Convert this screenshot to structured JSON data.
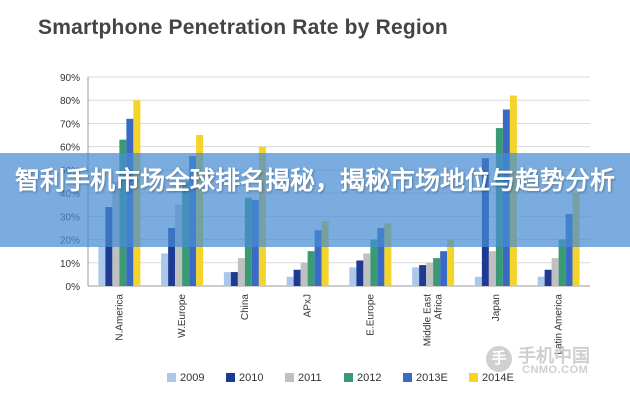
{
  "title": "Smartphone Penetration Rate by Region",
  "banner": {
    "text": "智利手机市场全球排名揭秘，揭秘市场地位与趋势分析"
  },
  "watermark": {
    "cn": "手机中国",
    "en": "CNMO.COM"
  },
  "colors": {
    "2009": "#a9c8ec",
    "2010": "#1f3a93",
    "2011": "#c0c0c0",
    "2012": "#3a9a73",
    "2013E": "#3b69c6",
    "2014E": "#f4d32a"
  },
  "chart_data": {
    "type": "bar",
    "title": "Smartphone Penetration Rate by Region",
    "categories": [
      "N.America",
      "W.Europe",
      "China",
      "APxJ",
      "E.Europe",
      "Middle East / Africa",
      "Japan",
      "Latin America"
    ],
    "series": [
      {
        "name": "2009",
        "values": [
          17,
          14,
          6,
          4,
          8,
          8,
          4,
          4
        ]
      },
      {
        "name": "2010",
        "values": [
          34,
          25,
          6,
          7,
          11,
          9,
          55,
          7
        ]
      },
      {
        "name": "2011",
        "values": [
          45,
          35,
          12,
          10,
          14,
          10,
          15,
          12
        ]
      },
      {
        "name": "2012",
        "values": [
          63,
          45,
          38,
          15,
          20,
          12,
          68,
          20
        ]
      },
      {
        "name": "2013E",
        "values": [
          72,
          56,
          37,
          24,
          25,
          15,
          76,
          31
        ]
      },
      {
        "name": "2014E",
        "values": [
          80,
          65,
          60,
          28,
          27,
          20,
          82,
          40
        ]
      }
    ],
    "yticks": [
      "0%",
      "10%",
      "20%",
      "30%",
      "40%",
      "50%",
      "60%",
      "70%",
      "80%",
      "90%"
    ],
    "ylim": [
      0,
      90
    ],
    "xlabel": "",
    "ylabel": "",
    "grid": true,
    "legend_position": "bottom"
  }
}
